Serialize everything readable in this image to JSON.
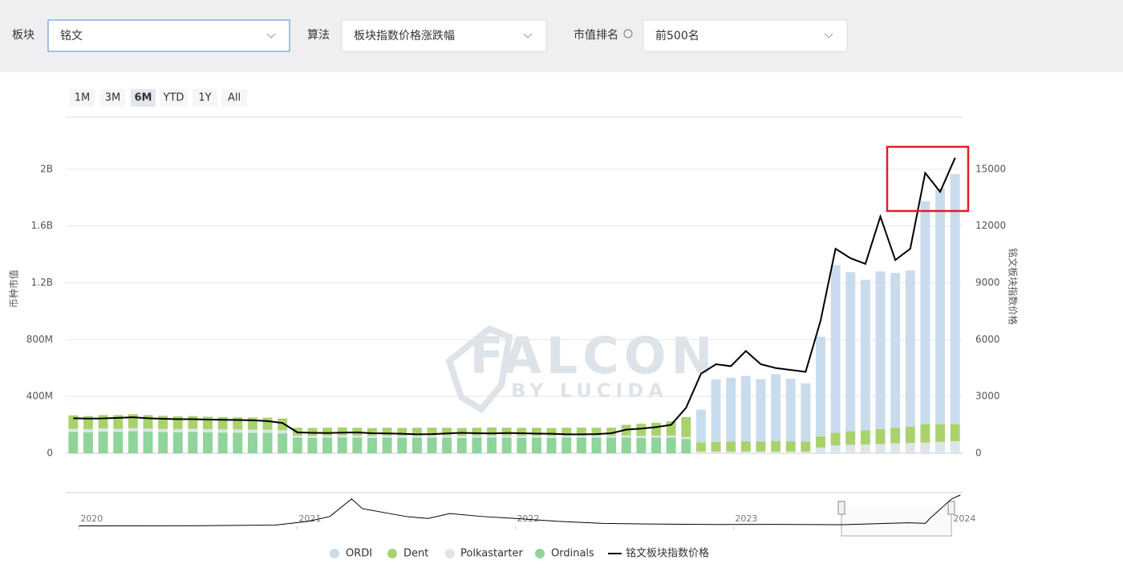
{
  "filters": [
    {
      "label": "板块",
      "value": "铭文"
    },
    {
      "label": "算法",
      "value": "板块指数价格涨跌幅"
    },
    {
      "label": "市值排名",
      "value": "前500名"
    }
  ],
  "range_buttons": [
    "1M",
    "3M",
    "6M",
    "YTD",
    "1Y",
    "All"
  ],
  "active_range": 2,
  "watermark": {
    "title": "FALCON",
    "subtitle": "BY LUCIDA"
  },
  "chart_data": [
    {
      "type": "bar-line",
      "y_label": "币种市值",
      "y2_label": "铭文板块指数价格",
      "grid": true,
      "ylim": [
        0,
        2400000000
      ],
      "yticks": [
        0,
        {
          "value": 400000000,
          "label": "400M"
        },
        {
          "value": 800000000,
          "label": "800M"
        },
        {
          "value": 1200000000,
          "label": "1.2B"
        },
        {
          "value": 1600000000,
          "label": "1.6B"
        },
        {
          "value": 2000000000,
          "label": "2B"
        }
      ],
      "y2lim": [
        0,
        18000
      ],
      "y2ticks": [
        0,
        3000,
        6000,
        9000,
        12000,
        15000
      ],
      "categories": [
        null,
        null,
        null,
        null,
        null,
        null,
        null,
        null,
        null,
        null,
        null,
        null,
        null,
        null,
        null,
        null,
        null,
        null,
        null,
        null,
        null,
        null,
        null,
        null,
        null,
        null,
        null,
        null,
        null,
        null,
        null,
        null,
        null,
        null,
        null,
        null,
        null,
        null,
        null,
        null,
        null,
        null,
        null,
        null,
        null,
        null,
        null,
        null,
        null,
        null,
        null,
        null,
        null,
        null,
        null,
        null,
        null,
        null,
        null,
        null
      ],
      "series": [
        {
          "name": "ORDI",
          "color": "#c9dcee",
          "values": [
            0,
            0,
            0,
            0,
            0,
            0,
            0,
            0,
            0,
            0,
            0,
            0,
            0,
            0,
            0,
            0,
            0,
            0,
            0,
            0,
            0,
            0,
            0,
            0,
            0,
            0,
            0,
            0,
            0,
            0,
            0,
            0,
            0,
            0,
            0,
            0,
            0,
            0,
            0,
            0,
            0,
            0,
            230000000,
            440000000,
            450000000,
            460000000,
            440000000,
            470000000,
            440000000,
            410000000,
            700000000,
            1180000000,
            1120000000,
            1060000000,
            1110000000,
            1090000000,
            1100000000,
            1570000000,
            1660000000,
            1760000000
          ]
        },
        {
          "name": "Dent",
          "color": "#a9d26d",
          "values": [
            95000000,
            92000000,
            95000000,
            97000000,
            98000000,
            95000000,
            92000000,
            90000000,
            90000000,
            88000000,
            87000000,
            86000000,
            85000000,
            85000000,
            83000000,
            55000000,
            55000000,
            55000000,
            55000000,
            55000000,
            55000000,
            55000000,
            55000000,
            55000000,
            55000000,
            55000000,
            55000000,
            55000000,
            55000000,
            55000000,
            55000000,
            55000000,
            55000000,
            55000000,
            55000000,
            55000000,
            55000000,
            75000000,
            85000000,
            90000000,
            100000000,
            140000000,
            65000000,
            68000000,
            70000000,
            72000000,
            70000000,
            75000000,
            72000000,
            70000000,
            80000000,
            90000000,
            95000000,
            100000000,
            105000000,
            110000000,
            115000000,
            130000000,
            125000000,
            120000000
          ]
        },
        {
          "name": "Polkastarter",
          "color": "#dde4ea",
          "values": [
            22000000,
            22000000,
            22000000,
            22000000,
            22000000,
            22000000,
            22000000,
            22000000,
            22000000,
            22000000,
            22000000,
            22000000,
            22000000,
            22000000,
            22000000,
            15000000,
            15000000,
            15000000,
            15000000,
            15000000,
            15000000,
            15000000,
            15000000,
            15000000,
            15000000,
            15000000,
            15000000,
            15000000,
            15000000,
            15000000,
            15000000,
            15000000,
            15000000,
            15000000,
            15000000,
            15000000,
            15000000,
            15000000,
            15000000,
            15000000,
            15000000,
            15000000,
            12000000,
            12000000,
            12000000,
            12000000,
            12000000,
            12000000,
            12000000,
            12000000,
            40000000,
            55000000,
            60000000,
            62000000,
            65000000,
            70000000,
            72000000,
            75000000,
            80000000,
            85000000
          ]
        },
        {
          "name": "Ordinals",
          "color": "#8fd49a",
          "values": [
            150000000,
            148000000,
            152000000,
            150000000,
            155000000,
            152000000,
            150000000,
            148000000,
            150000000,
            148000000,
            146000000,
            145000000,
            145000000,
            144000000,
            140000000,
            110000000,
            108000000,
            110000000,
            112000000,
            110000000,
            108000000,
            110000000,
            109000000,
            110000000,
            111000000,
            110000000,
            108000000,
            110000000,
            112000000,
            110000000,
            109000000,
            110000000,
            108000000,
            110000000,
            111000000,
            110000000,
            110000000,
            110000000,
            108000000,
            110000000,
            110000000,
            100000000,
            0,
            0,
            0,
            0,
            0,
            0,
            0,
            0,
            0,
            0,
            0,
            0,
            0,
            0,
            0,
            0,
            0,
            0
          ]
        },
        {
          "name": "铭文板块指数价格",
          "color": "#000000",
          "axis": "y2",
          "values": [
            1850,
            1830,
            1840,
            1870,
            1900,
            1850,
            1820,
            1800,
            1800,
            1780,
            1770,
            1760,
            1740,
            1700,
            1600,
            1100,
            1080,
            1070,
            1090,
            1100,
            1060,
            1050,
            1030,
            1000,
            1010,
            1050,
            1080,
            1060,
            1050,
            1070,
            1060,
            1040,
            1030,
            1000,
            1000,
            1010,
            1060,
            1250,
            1300,
            1380,
            1500,
            2400,
            4200,
            4700,
            4600,
            5400,
            4700,
            4500,
            4400,
            4300,
            7000,
            10800,
            10300,
            10000,
            12500,
            10200,
            10800,
            14800,
            13800,
            15600
          ]
        }
      ]
    },
    {
      "type": "line",
      "color": "#000000",
      "xlim": [
        2019.94,
        2024.05
      ],
      "xticks": [
        2020,
        2021,
        2022,
        2023,
        2024
      ],
      "ylim": [
        0,
        16000
      ],
      "x": [
        2020.0,
        2020.5,
        2020.9,
        2021.05,
        2021.15,
        2021.25,
        2021.3,
        2021.4,
        2021.5,
        2021.6,
        2021.7,
        2021.85,
        2022.0,
        2022.2,
        2022.4,
        2022.6,
        2022.9,
        2023.2,
        2023.5,
        2023.8,
        2023.88,
        2023.9,
        2023.95,
        2024.0,
        2024.04
      ],
      "values": [
        200,
        250,
        600,
        2500,
        5000,
        14000,
        9000,
        7000,
        5000,
        4000,
        6500,
        5000,
        4000,
        2500,
        1500,
        1200,
        900,
        1000,
        800,
        1800,
        1500,
        4000,
        9000,
        14000,
        16000
      ]
    }
  ]
}
